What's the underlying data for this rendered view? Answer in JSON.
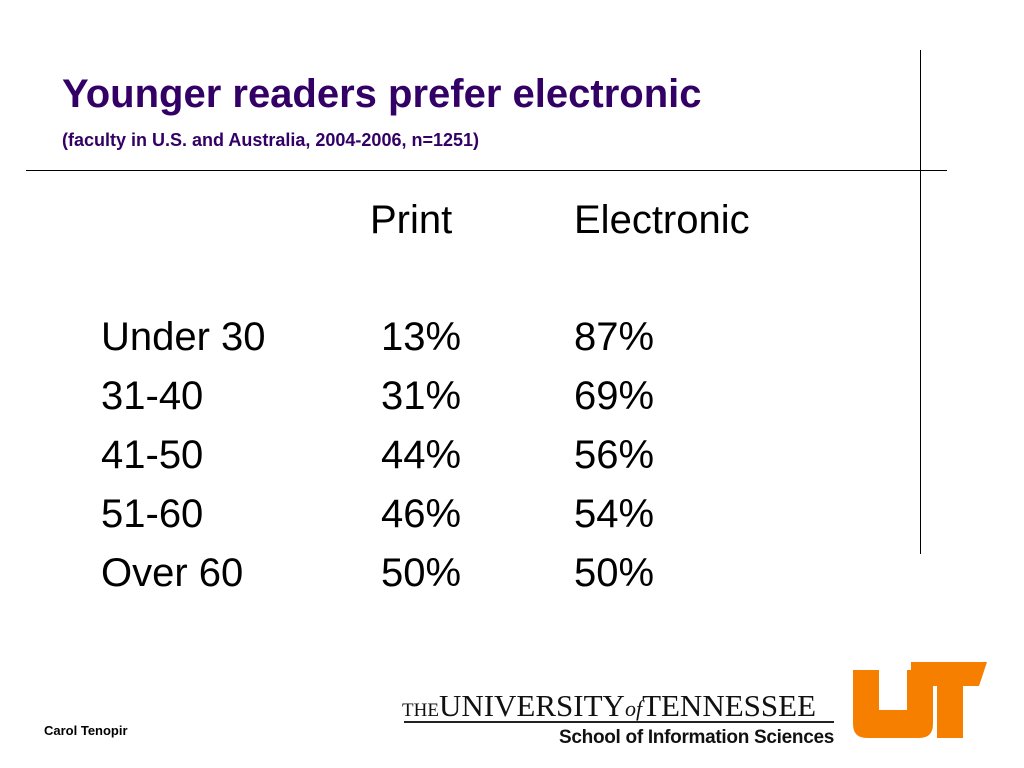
{
  "slide": {
    "title": "Younger readers prefer electronic",
    "subtitle": "(faculty in U.S. and Australia, 2004-2006, n=1251)"
  },
  "table": {
    "headers": {
      "print": "Print",
      "electronic": "Electronic"
    },
    "rows": [
      {
        "age": "Under 30",
        "print": "13%",
        "electronic": "87%"
      },
      {
        "age": "31-40",
        "print": "31%",
        "electronic": "69%"
      },
      {
        "age": "41-50",
        "print": "44%",
        "electronic": "56%"
      },
      {
        "age": "51-60",
        "print": "46%",
        "electronic": "54%"
      },
      {
        "age": "Over 60",
        "print": "50%",
        "electronic": "50%"
      }
    ]
  },
  "footer": {
    "author": "Carol Tenopir",
    "university": {
      "the": "THE",
      "university": "UNIVERSITY",
      "of": "of",
      "tennessee": "TENNESSEE"
    },
    "school": "School of Information Sciences",
    "logo_icon": "ut-logo-icon",
    "logo_color": "#F77F00"
  }
}
